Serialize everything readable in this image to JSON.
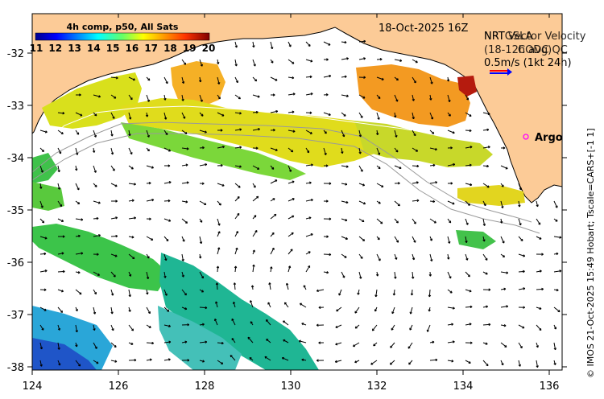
{
  "colorbar": {
    "title": "4h comp, p50, All Sats",
    "ticks": [
      "11",
      "12",
      "13",
      "14",
      "15",
      "16",
      "17",
      "18",
      "19",
      "20"
    ]
  },
  "header": {
    "date": "18-Oct-2025 16Z",
    "velocity_title": "NRT Vector Velocity",
    "velocity_title_overlap": "NRTGSLA",
    "velocity_sub": "(18-12h avg)",
    "velocity_sub_overlap": "CODC QC",
    "scale_label": "0.5m/s (1kt 24h)",
    "argo_label": "Argo"
  },
  "axes": {
    "x_ticks": [
      "124",
      "126",
      "128",
      "130",
      "132",
      "134",
      "136"
    ],
    "y_ticks": [
      "-32",
      "-33",
      "-34",
      "-35",
      "-36",
      "-37",
      "-38"
    ]
  },
  "colors": {
    "land": "#fccb97",
    "argo": "#ff00ff",
    "arrow_red": "#ff0000",
    "arrow_blue": "#0000ff"
  },
  "footer": {
    "credit": "© IMOS 21-Oct-2025 15:49 Hobart; Tscale=CARS+[-1 1]"
  }
}
